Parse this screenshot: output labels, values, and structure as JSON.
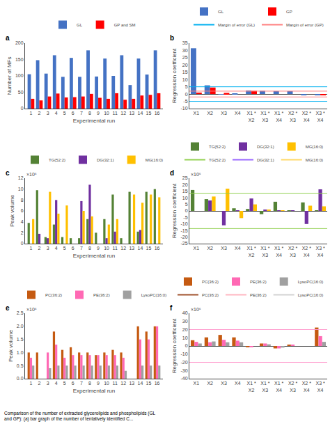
{
  "chart_data": [
    {
      "type": "bar",
      "title": "a",
      "xlabel": "Experimental run",
      "ylabel": "Number of MFs",
      "x": [
        1,
        2,
        3,
        4,
        5,
        6,
        7,
        8,
        9,
        10,
        11,
        12,
        13,
        14,
        15,
        16
      ],
      "xlim": [
        0.3,
        16.7
      ],
      "xticks": [
        1,
        2,
        3,
        4,
        5,
        6,
        7,
        8,
        9,
        10,
        11,
        12,
        13,
        14,
        15,
        16
      ],
      "ylim": [
        0,
        200
      ],
      "yticks": [
        0,
        50,
        100,
        150,
        200
      ],
      "grid": false,
      "legend": "top",
      "series": [
        {
          "name": "GL",
          "color": "#4472C4",
          "values": [
            105,
            148,
            107,
            163,
            97,
            155,
            97,
            178,
            98,
            153,
            100,
            163,
            72,
            153,
            104,
            178
          ]
        },
        {
          "name": "GP and SM",
          "color": "#FF0000",
          "values": [
            30,
            25,
            37,
            46,
            34,
            35,
            37,
            45,
            33,
            30,
            47,
            27,
            30,
            40,
            42,
            47
          ]
        }
      ]
    },
    {
      "type": "bar",
      "title": "b",
      "ylabel": "Regression coefficient",
      "categories": [
        "X1",
        "X2",
        "X3",
        "X4",
        "X1 *\nX2",
        "X1 *\nX3",
        "X1 *\nX4",
        "X2 *\nX3",
        "X2 *\nX4",
        "X3 *\nX4"
      ],
      "ylim": [
        -10,
        35
      ],
      "yticks": [
        -10,
        -5,
        0,
        5,
        10,
        15,
        20,
        25,
        30,
        35
      ],
      "grid": false,
      "legend": "top right",
      "series": [
        {
          "name": "GL",
          "color": "#4472C4",
          "values": [
            31.5,
            6.0,
            -0.3,
            0.5,
            2.5,
            2.2,
            2.0,
            2.0,
            -0.5,
            -0.5
          ]
        },
        {
          "name": "GP",
          "color": "#FF0000",
          "values": [
            1.0,
            4.5,
            0.8,
            0.0,
            2.2,
            0.0,
            0.0,
            0.0,
            0.0,
            -0.5
          ]
        },
        {
          "name": "Margin of error (GL)",
          "type": "line",
          "color": "#00B0F0",
          "margin": 5.0
        },
        {
          "name": "Margin of error (GP)",
          "type": "line",
          "color": "#FF8080",
          "margin": 2.0
        }
      ]
    },
    {
      "type": "bar",
      "title": "c",
      "xlabel": "Experimental run",
      "ylabel": "Peak volume",
      "annotations": [
        "×10⁶"
      ],
      "x": [
        1,
        2,
        3,
        4,
        5,
        6,
        7,
        8,
        9,
        10,
        11,
        12,
        13,
        14,
        15,
        16
      ],
      "xlim": [
        0.3,
        16.7
      ],
      "xticks": [
        1,
        2,
        3,
        4,
        5,
        6,
        7,
        8,
        9,
        10,
        11,
        12,
        13,
        14,
        15,
        16
      ],
      "ylim": [
        0,
        12
      ],
      "yticks": [
        0,
        2,
        4,
        6,
        8,
        10,
        12
      ],
      "grid": false,
      "legend": "top",
      "series": [
        {
          "name": "TG(52:2)",
          "color": "#548235",
          "values": [
            3.8,
            9.8,
            1.2,
            3.5,
            1.2,
            1.0,
            1.0,
            4.5,
            2.0,
            4.5,
            9.0,
            1.0,
            9.5,
            2.2,
            9.5,
            10.0
          ]
        },
        {
          "name": "DG(32:1)",
          "color": "#7030A0",
          "values": [
            0.0,
            1.8,
            1.0,
            8.0,
            0.0,
            0.0,
            7.8,
            10.8,
            0.0,
            1.0,
            2.2,
            0.0,
            0.0,
            2.5,
            0.0,
            0.0
          ]
        },
        {
          "name": "MG(16:0)",
          "color": "#FFC000",
          "values": [
            4.5,
            0.0,
            9.5,
            5.5,
            7.0,
            0.0,
            6.0,
            5.0,
            0.0,
            3.5,
            4.5,
            0.0,
            9.0,
            7.5,
            9.0,
            8.5
          ]
        }
      ]
    },
    {
      "type": "bar",
      "title": "d",
      "ylabel": "Regression coefficient",
      "annotations": [
        "×10⁶"
      ],
      "categories": [
        "X1",
        "X2",
        "X3",
        "X4",
        "X1 *\nX2",
        "X1 *\nX3",
        "X1 *\nX4",
        "X2 *\nX3",
        "X2 *\nX4",
        "X3 *\nX4"
      ],
      "ylim": [
        -25,
        25
      ],
      "yticks": [
        -25,
        -20,
        -15,
        -10,
        -5,
        0,
        5,
        10,
        15,
        20,
        25
      ],
      "grid": false,
      "legend": "top right",
      "series": [
        {
          "name": "TG(52:2)",
          "color": "#548235",
          "values": [
            16.0,
            9.0,
            0.0,
            2.0,
            1.5,
            -2.5,
            7.0,
            0.5,
            6.5,
            0.5
          ]
        },
        {
          "name": "DG(32:1)",
          "color": "#7030A0",
          "values": [
            0.0,
            8.0,
            -11.0,
            0.5,
            9.5,
            0.8,
            0.2,
            0.2,
            -10.0,
            16.5
          ]
        },
        {
          "name": "MG(16:0)",
          "color": "#FFC000",
          "values": [
            0.0,
            11.0,
            17.0,
            -5.5,
            5.0,
            1.0,
            0.5,
            0.0,
            4.0,
            3.5
          ]
        },
        {
          "name": "TG(52:2)",
          "type": "line",
          "color": "#92D050",
          "margin": 13.5
        },
        {
          "name": "DG(32:1)",
          "type": "line",
          "color": "#9966FF"
        },
        {
          "name": "MG(16:0)",
          "type": "line",
          "color": "#FFD966"
        }
      ]
    },
    {
      "type": "bar",
      "title": "e",
      "xlabel": "Experimental run",
      "ylabel": "Peak volume",
      "annotations": [
        "×10⁶"
      ],
      "x": [
        1,
        2,
        3,
        4,
        5,
        6,
        7,
        8,
        9,
        10,
        11,
        12,
        13,
        14,
        15,
        16
      ],
      "xlim": [
        0.3,
        16.7
      ],
      "xticks": [
        1,
        2,
        3,
        4,
        5,
        6,
        7,
        8,
        9,
        10,
        11,
        12,
        13,
        14,
        15,
        16
      ],
      "ylim": [
        0,
        2.5
      ],
      "yticks": [
        {
          "value": 0.0,
          "label": "0.0"
        },
        0.5,
        {
          "value": 1.0,
          "label": "1.0"
        },
        1.5,
        {
          "value": 2.0,
          "label": "2.0"
        },
        2.5
      ],
      "grid": false,
      "legend": "top",
      "series": [
        {
          "name": "PC(36:2)",
          "color": "#C55A11",
          "values": [
            1.0,
            1.0,
            0.0,
            1.8,
            1.1,
            1.2,
            1.0,
            1.0,
            0.9,
            1.0,
            1.1,
            1.0,
            0.0,
            2.0,
            1.8,
            2.0
          ]
        },
        {
          "name": "PE(36:2)",
          "color": "#FF69B4",
          "values": [
            0.8,
            0.0,
            1.0,
            1.3,
            0.8,
            0.9,
            0.9,
            0.9,
            0.9,
            0.9,
            0.9,
            0.8,
            0.0,
            1.5,
            1.5,
            2.0
          ]
        },
        {
          "name": "LysoPC(16:0)",
          "color": "#A0A0A0",
          "values": [
            0.5,
            0.0,
            0.4,
            0.5,
            0.5,
            0.5,
            0.5,
            0.5,
            0.5,
            0.5,
            0.5,
            0.3,
            0.0,
            0.5,
            0.5,
            0.5
          ]
        }
      ]
    },
    {
      "type": "bar",
      "title": "f",
      "ylabel": "Regression coefficient",
      "annotations": [
        "×10⁶"
      ],
      "categories": [
        "X1",
        "X2",
        "X3",
        "X4",
        "X1 *\nX2",
        "X1 *\nX3",
        "X1 *\nX4",
        "X2 *\nX3",
        "X2 *\nX4",
        "X3 *\nX4"
      ],
      "ylim": [
        -40,
        40
      ],
      "yticks": [
        -40,
        -30,
        -20,
        -10,
        0,
        10,
        20,
        30,
        40
      ],
      "grid": false,
      "legend": "top right",
      "margin": {
        "value": 20.0,
        "color": "#FF99CC"
      },
      "series": [
        {
          "name": "PC(36:2)",
          "color": "#C55A11",
          "values": [
            7.0,
            10.5,
            13.5,
            10.5,
            -1.0,
            3.0,
            -3.0,
            1.0,
            0.0,
            22.5
          ]
        },
        {
          "name": "PE(36:2)",
          "color": "#FF69B4",
          "values": [
            5.0,
            4.5,
            7.5,
            6.5,
            -1.0,
            3.0,
            -3.0,
            1.0,
            0.0,
            12.0
          ]
        },
        {
          "name": "LysoPC(16:0)",
          "color": "#A0A0A0",
          "values": [
            3.0,
            5.5,
            4.5,
            4.5,
            0.0,
            2.0,
            -2.0,
            0.0,
            0.0,
            5.0
          ]
        },
        {
          "name": "PC(36:2)",
          "type": "line",
          "color": "#A0522D"
        },
        {
          "name": "PE(36:2)",
          "type": "line",
          "color": "#FFB6C1"
        },
        {
          "name": "LysoPC(16:0)",
          "type": "line",
          "color": "#D3D3D3"
        }
      ]
    }
  ],
  "caption": "Comparison of the number of extracted glycerolipids and phospholipids (GL and GP): (a) bar graph of the number of tentatively identified C..."
}
